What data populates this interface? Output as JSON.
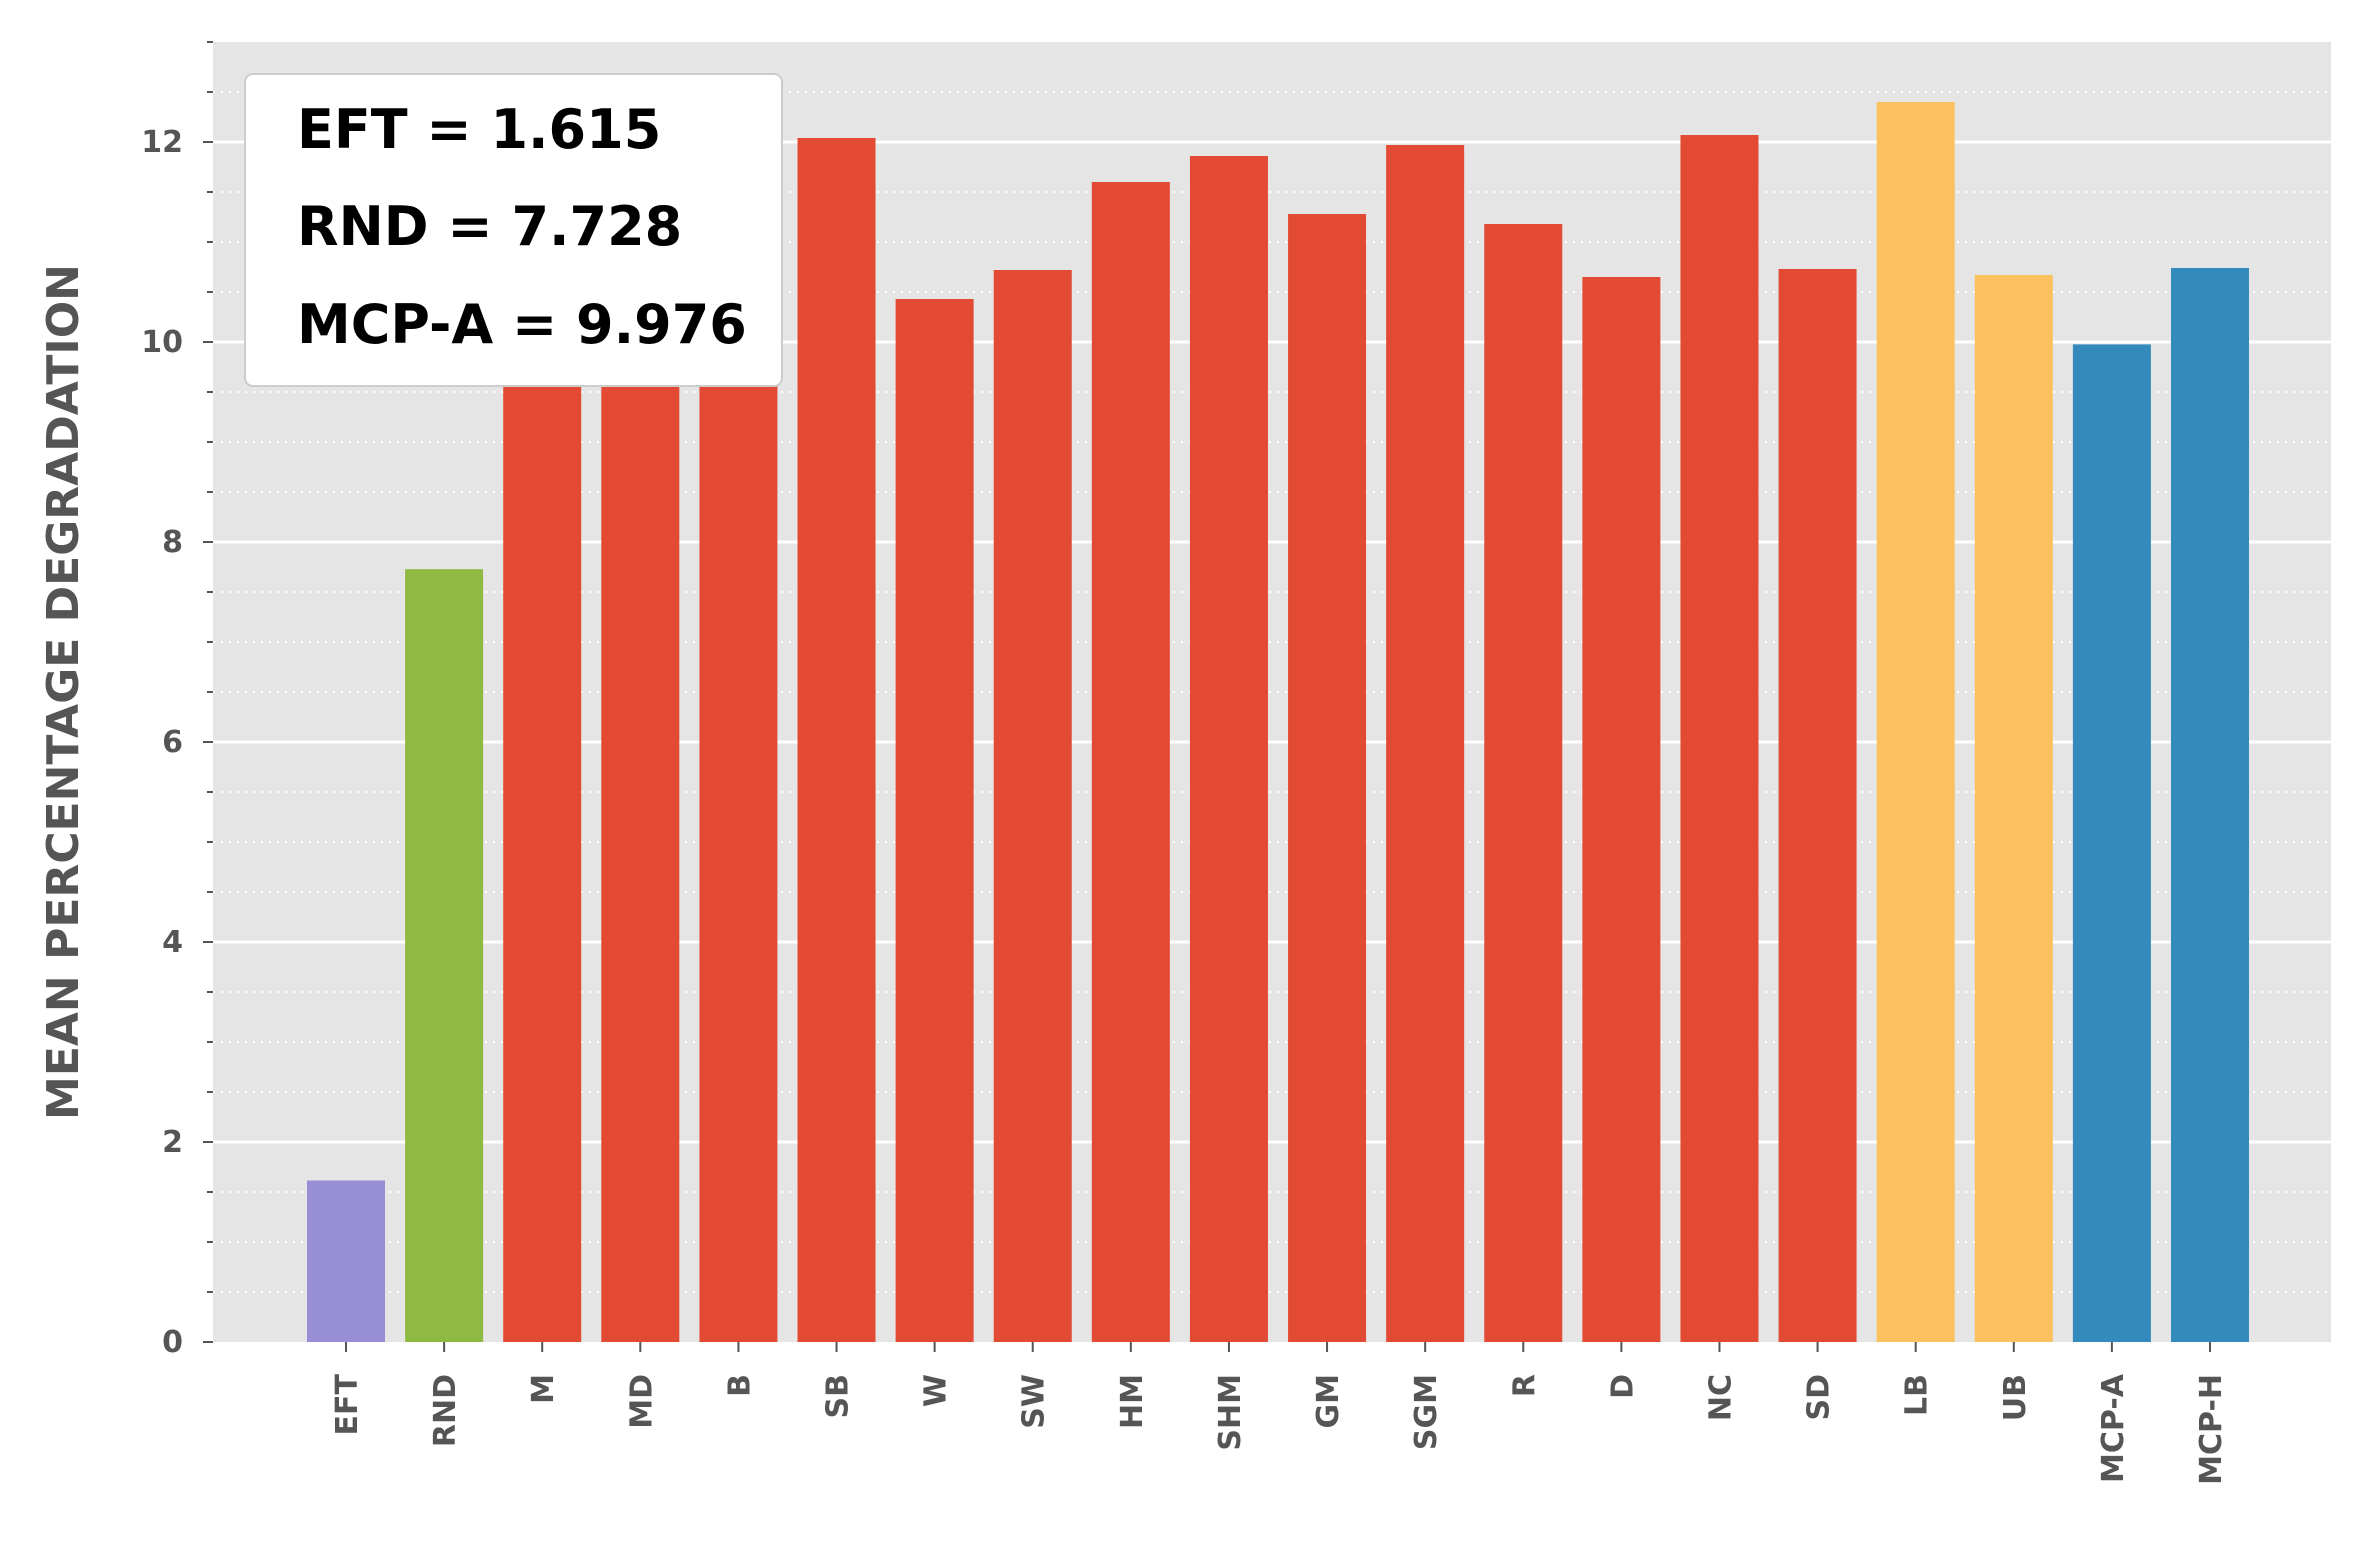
{
  "chart_data": {
    "type": "bar",
    "ylabel": "MEAN PERCENTAGE DEGRADATION",
    "xlabel": "",
    "ylim": [
      0,
      13
    ],
    "yticks": [
      "0",
      "2",
      "4",
      "6",
      "8",
      "10",
      "12"
    ],
    "grid": "on",
    "categories": [
      "EFT",
      "RND",
      "M",
      "MD",
      "B",
      "SB",
      "W",
      "SW",
      "HM",
      "SHM",
      "GM",
      "SGM",
      "R",
      "D",
      "NC",
      "SD",
      "LB",
      "UB",
      "MCP-A",
      "MCP-H"
    ],
    "values": [
      1.615,
      7.728,
      12.2,
      11.4,
      10.6,
      12.04,
      10.43,
      10.72,
      11.6,
      11.86,
      11.28,
      11.97,
      11.18,
      10.65,
      12.07,
      10.73,
      12.4,
      10.67,
      9.976,
      10.74
    ],
    "bar_colors": [
      "#988ED5",
      "#8EBA42",
      "#E24A33",
      "#E24A33",
      "#E24A33",
      "#E24A33",
      "#E24A33",
      "#E24A33",
      "#E24A33",
      "#E24A33",
      "#E24A33",
      "#E24A33",
      "#E24A33",
      "#E24A33",
      "#E24A33",
      "#E24A33",
      "#FBC15E",
      "#FBC15E",
      "#348ABD",
      "#348ABD"
    ],
    "legend_location": "top-left",
    "annotations": [
      "EFT = 1.615",
      "RND = 7.728",
      "MCP-A = 9.976"
    ]
  }
}
